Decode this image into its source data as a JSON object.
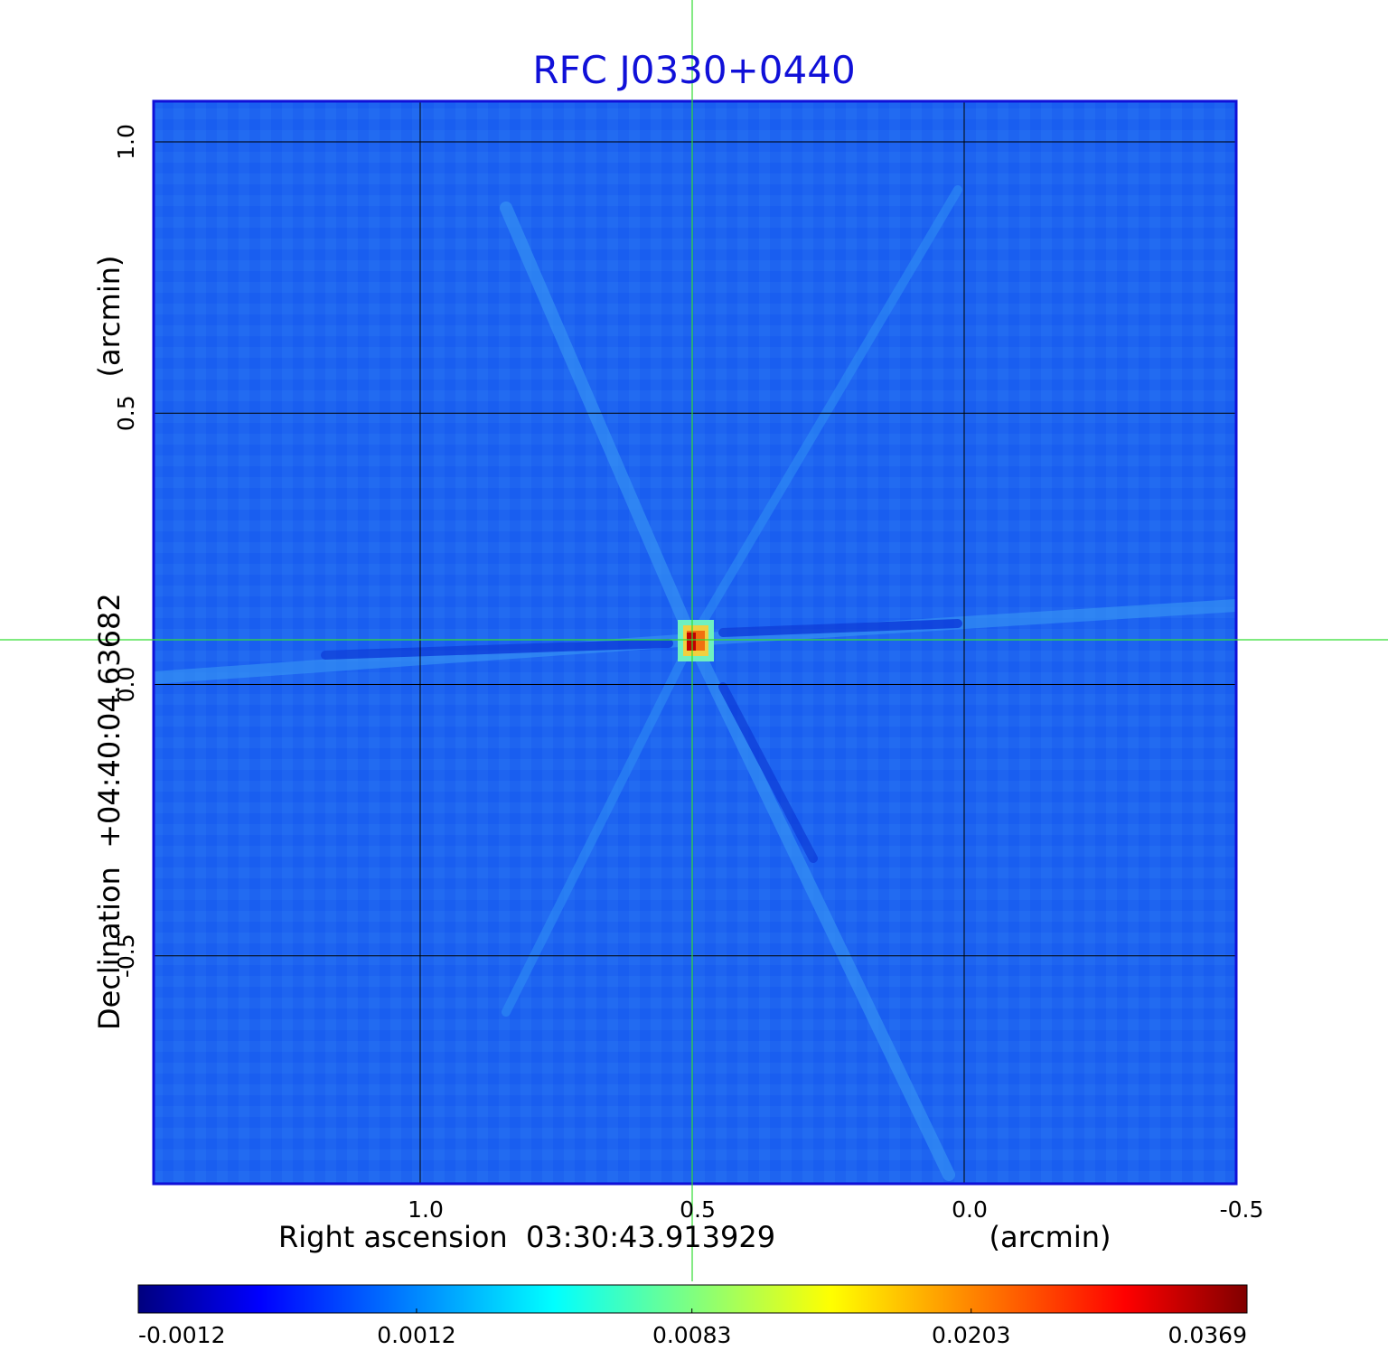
{
  "chart_data": {
    "type": "image",
    "title": "RFC J0330+0440",
    "title_color": "#1010d8",
    "x_label": "Right ascension  03:30:43.913929",
    "x_unit": "(arcmin)",
    "y_label": "Declination  +04:40:04.63682",
    "y_unit": "(arcmin)",
    "xlim": [
      1.49,
      -0.5
    ],
    "xticks": [
      {
        "value": 1,
        "label": "1.0"
      },
      0.5,
      {
        "value": 0,
        "label": "0.0"
      },
      -0.5
    ],
    "ylim": [
      -0.92,
      1.075
    ],
    "yticks": [
      -0.5,
      {
        "value": 0,
        "label": "0.0"
      },
      0.5,
      {
        "value": 1,
        "label": "1.0"
      }
    ],
    "grid": true,
    "colormap": "jet",
    "colorbar": {
      "scale": "sqrt",
      "lim": [
        -0.0012,
        0.0369
      ],
      "ticks": [
        -0.0012,
        0.0012,
        0.0083,
        0.0203,
        0.0369
      ]
    }
  }
}
